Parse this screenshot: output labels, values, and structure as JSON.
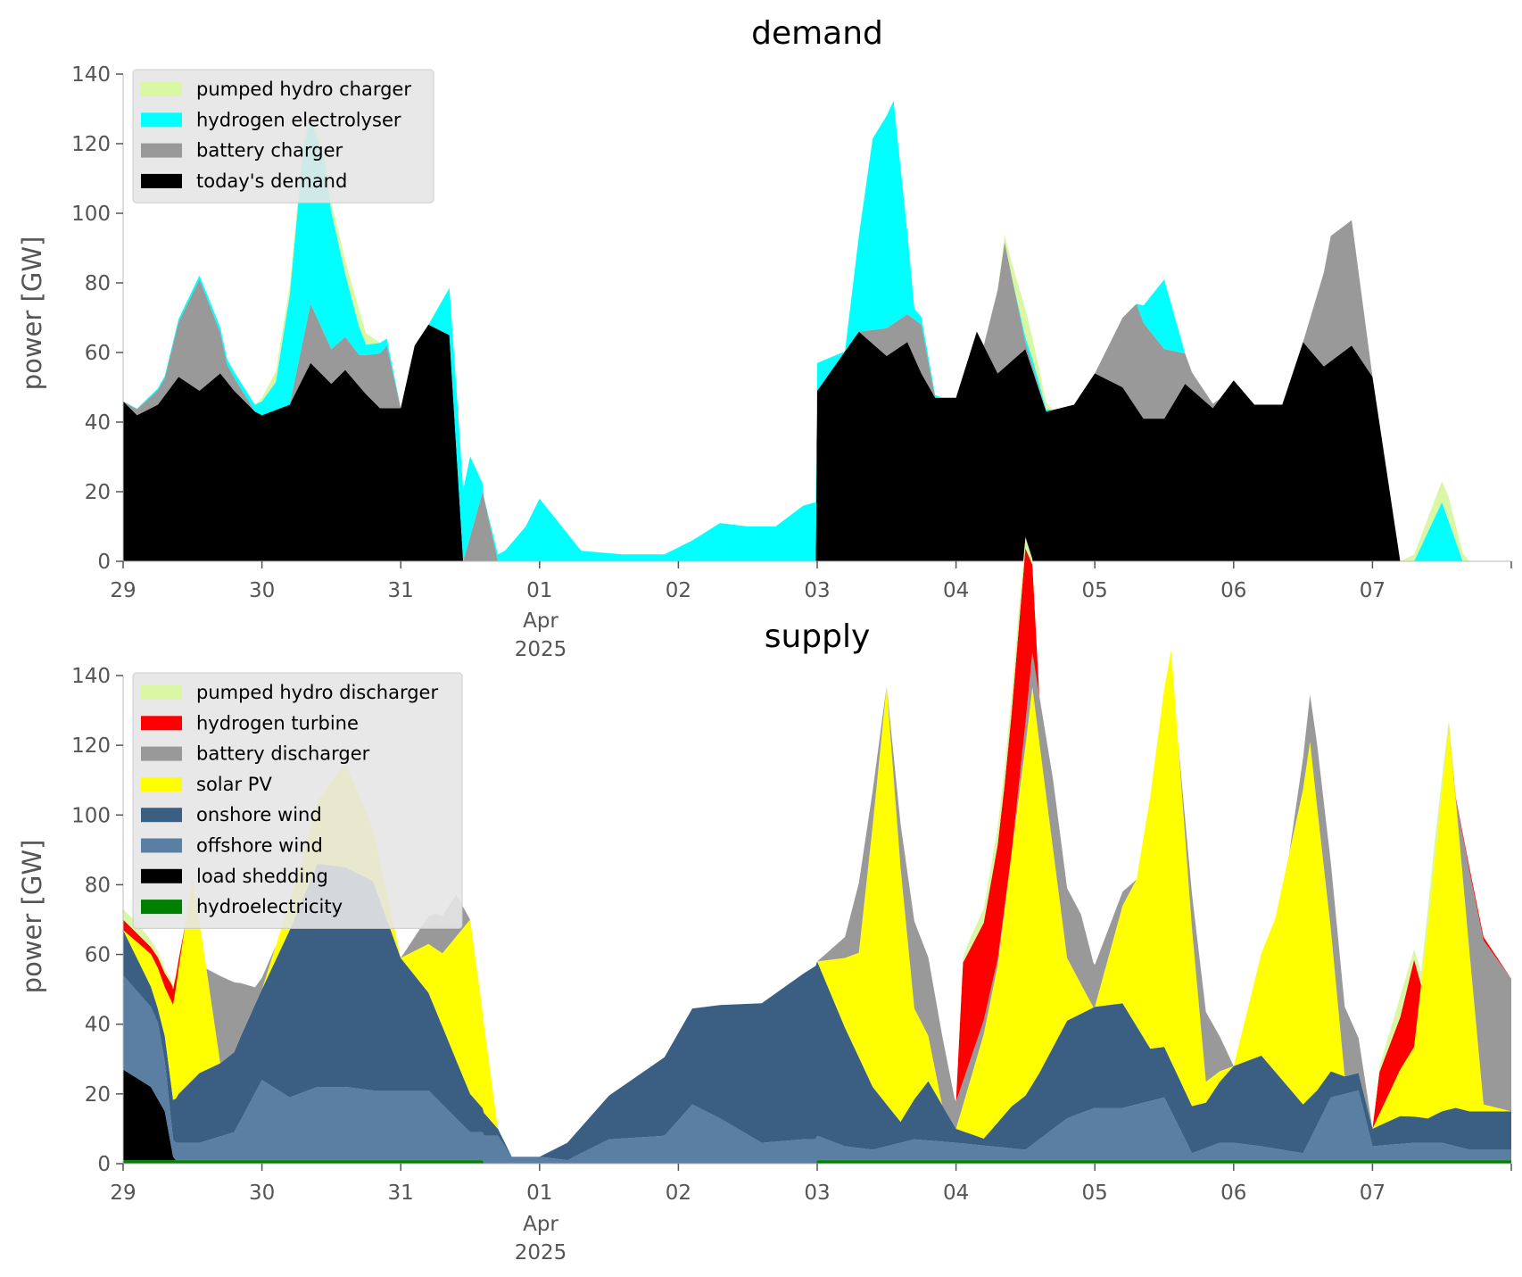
{
  "chart_data": [
    {
      "type": "area",
      "stacked": true,
      "title": "demand",
      "ylabel": "power [GW]",
      "ylim": [
        0,
        140
      ],
      "yticks": [
        "0",
        "20",
        "40",
        "60",
        "80",
        "100",
        "120",
        "140"
      ],
      "xlim": [
        "2025-03-29T00:00",
        "2025-04-08T00:00"
      ],
      "xticks": [
        "29",
        "30",
        "31",
        "01",
        "02",
        "03",
        "04",
        "05",
        "06",
        "07"
      ],
      "xtick_month": "Apr",
      "xtick_year": "2025",
      "grid": false,
      "legend_position": "top-left",
      "legend": [
        "pumped hydro charger",
        "hydrogen electrolyser",
        "battery charger",
        "today's demand"
      ],
      "series": [
        {
          "name": "today's demand",
          "color": "#000000",
          "x": [
            0,
            0.1,
            0.25,
            0.4,
            0.55,
            0.7,
            0.8,
            0.95,
            1.0,
            1.2,
            1.35,
            1.5,
            1.6,
            1.75,
            1.85,
            2.0,
            2.1,
            2.2,
            2.35,
            2.45,
            2.55,
            2.59,
            2.6,
            3.0,
            3.3,
            3.6,
            3.9,
            4.99,
            5.0,
            5.3,
            5.5,
            5.65,
            5.75,
            5.85,
            6.0,
            6.15,
            6.3,
            6.5,
            6.65,
            6.85,
            7.0,
            7.2,
            7.35,
            7.5,
            7.65,
            7.85,
            8.0,
            8.15,
            8.35,
            8.5,
            8.65,
            8.85,
            9.0,
            9.2,
            9.35,
            9.5,
            9.7,
            9.85,
            10.0
          ],
          "values": [
            46,
            42,
            45,
            53,
            49,
            54,
            49,
            43,
            42,
            45,
            57,
            51,
            55,
            48,
            44,
            44,
            62,
            68,
            65,
            0,
            0,
            0,
            0,
            0,
            0,
            0,
            0,
            0,
            49,
            66,
            59,
            63,
            54,
            47,
            47,
            66,
            54,
            61,
            43,
            45,
            54,
            50,
            41,
            41,
            51,
            44,
            52,
            45,
            45,
            63,
            56,
            62,
            53,
            0,
            0,
            0,
            0,
            0,
            0
          ]
        },
        {
          "name": "battery charger",
          "color": "#999999",
          "x": [
            0,
            0.3,
            0.55,
            0.75,
            0.95,
            1.2,
            1.35,
            1.5,
            1.7,
            1.9,
            2.0,
            2.2,
            2.45,
            2.59,
            2.7,
            2.8,
            3.0,
            5.0,
            5.3,
            5.5,
            5.65,
            5.75,
            5.85,
            6.0,
            6.2,
            6.35,
            6.5,
            6.65,
            6.85,
            7.0,
            7.3,
            7.5,
            7.7,
            7.9,
            8.0,
            8.2,
            8.5,
            8.7,
            8.85,
            9.0,
            9.2,
            9.35,
            9.5,
            9.7,
            9.85,
            10.0
          ],
          "values": [
            0,
            5,
            32,
            5,
            0,
            0,
            17,
            10,
            9,
            18,
            0,
            0,
            0,
            20,
            0,
            0,
            0,
            0,
            0,
            8,
            8,
            14,
            0,
            0,
            0,
            36,
            2,
            0,
            0,
            0,
            30,
            20,
            5,
            0,
            0,
            0,
            0,
            36,
            36,
            0,
            0,
            0,
            0,
            0,
            0,
            0
          ]
        },
        {
          "name": "hydrogen electrolyser",
          "color": "#00ffff",
          "x": [
            0,
            0.95,
            1.1,
            1.3,
            1.45,
            1.6,
            1.75,
            1.85,
            2.0,
            2.2,
            2.4,
            2.5,
            2.6,
            2.75,
            2.9,
            3.0,
            3.3,
            3.6,
            3.9,
            4.1,
            4.3,
            4.5,
            4.7,
            4.9,
            4.99,
            5.0,
            5.2,
            5.4,
            5.55,
            5.7,
            5.9,
            6.2,
            6.4,
            6.55,
            6.7,
            6.85,
            7.0,
            7.3,
            7.5,
            7.65,
            7.8,
            7.95,
            8.2,
            8.35,
            8.5,
            8.65,
            8.85,
            9.0,
            9.3,
            9.5,
            9.65,
            9.85,
            10.0
          ],
          "values": [
            0,
            2,
            8,
            55,
            50,
            18,
            3,
            3,
            0,
            0,
            18,
            23,
            0,
            3,
            10,
            18,
            3,
            2,
            2,
            6,
            11,
            10,
            10,
            16,
            17,
            8,
            0,
            55,
            64,
            3,
            0,
            0,
            0,
            2,
            0,
            0,
            0,
            0,
            20,
            0,
            0,
            0,
            0,
            0,
            0,
            0,
            0,
            0,
            0,
            17,
            0,
            0,
            0
          ]
        },
        {
          "name": "pumped hydro charger",
          "color": "#d9f7a4",
          "x": [
            0,
            0.95,
            1.1,
            1.3,
            1.5,
            1.7,
            1.85,
            2.0,
            6.3,
            6.5,
            6.7,
            6.9,
            9.2,
            9.4,
            9.55,
            9.7,
            10.0
          ],
          "values": [
            0,
            0,
            3,
            2,
            3,
            5,
            0,
            0,
            0,
            8,
            0,
            0,
            0,
            4,
            7,
            0,
            0
          ]
        }
      ]
    },
    {
      "type": "area",
      "stacked": true,
      "title": "supply",
      "ylabel": "power [GW]",
      "ylim": [
        0,
        140
      ],
      "yticks": [
        "0",
        "20",
        "40",
        "60",
        "80",
        "100",
        "120",
        "140"
      ],
      "xlim": [
        "2025-03-29T00:00",
        "2025-04-08T00:00"
      ],
      "xticks": [
        "29",
        "30",
        "31",
        "01",
        "02",
        "03",
        "04",
        "05",
        "06",
        "07"
      ],
      "xtick_month": "Apr",
      "xtick_year": "2025",
      "grid": false,
      "legend_position": "top-left",
      "legend": [
        "pumped hydro discharger",
        "hydrogen turbine",
        "battery discharger",
        "solar PV",
        "onshore wind",
        "offshore wind",
        "load shedding",
        "hydroelectricity"
      ],
      "series": [
        {
          "name": "hydroelectricity",
          "color": "#008000",
          "x": [
            0,
            2.59,
            2.6,
            4.99,
            5.0,
            10.0
          ],
          "values": [
            1,
            1,
            0,
            0,
            1,
            1
          ]
        },
        {
          "name": "load shedding",
          "color": "#000000",
          "x": [
            0,
            0.2,
            0.3,
            0.36,
            0.38,
            10.0
          ],
          "values": [
            26,
            21,
            14,
            1,
            0,
            0
          ]
        },
        {
          "name": "offshore wind",
          "color": "#5b7fa3",
          "x": [
            0,
            0.25,
            0.36,
            0.55,
            0.8,
            1.0,
            1.2,
            1.4,
            1.6,
            1.8,
            2.0,
            2.2,
            2.5,
            2.7,
            2.8,
            3.0,
            3.2,
            3.5,
            3.9,
            4.1,
            4.3,
            4.6,
            4.9,
            5.0,
            5.2,
            5.4,
            5.7,
            6.0,
            6.5,
            6.8,
            7.0,
            7.2,
            7.5,
            7.7,
            7.9,
            8.0,
            8.2,
            8.5,
            8.7,
            8.9,
            9.0,
            9.3,
            9.5,
            9.7,
            10.0
          ],
          "values": [
            27,
            22,
            5,
            5,
            8,
            23,
            18,
            21,
            21,
            20,
            20,
            20,
            8,
            8,
            2,
            2,
            1,
            7,
            8,
            17,
            13,
            6,
            7,
            7,
            4,
            3,
            6,
            5,
            3,
            12,
            15,
            15,
            18,
            2,
            5,
            5,
            4,
            2,
            18,
            20,
            4,
            5,
            5,
            3,
            3
          ]
        },
        {
          "name": "onshore wind",
          "color": "#3a5f82",
          "x": [
            0,
            0.25,
            0.4,
            0.55,
            0.7,
            0.85,
            1.0,
            1.2,
            1.4,
            1.6,
            1.8,
            2.0,
            2.2,
            2.5,
            2.7,
            2.8,
            3.0,
            5.0,
            5.2,
            5.4,
            5.6,
            5.8,
            6.0,
            6.2,
            6.4,
            6.6,
            6.8,
            7.0,
            7.2,
            7.4,
            7.6,
            7.8,
            8.0,
            8.2,
            8.4,
            8.6,
            8.8,
            9.0,
            9.2,
            9.4,
            9.6,
            9.8,
            10.0
          ],
          "values": [
            13,
            4,
            14,
            20,
            21,
            24,
            26,
            48,
            64,
            63,
            60,
            38,
            28,
            11,
            2,
            0,
            0,
            50,
            34,
            18,
            6,
            17,
            4,
            2,
            12,
            19,
            28,
            29,
            30,
            15,
            14,
            13,
            22,
            26,
            18,
            10,
            5,
            5,
            8,
            7,
            11,
            11,
            11
          ]
        },
        {
          "name": "solar PV",
          "color": "#ffff00",
          "x": [
            0,
            0.3,
            0.5,
            0.7,
            1.0,
            1.3,
            1.6,
            2.0,
            2.3,
            2.5,
            2.7,
            3.0,
            5.0,
            5.3,
            5.5,
            5.7,
            5.9,
            6.0,
            6.3,
            6.55,
            6.8,
            6.99,
            7.0,
            7.3,
            7.55,
            7.8,
            8.0,
            8.3,
            8.55,
            8.8,
            9.0,
            9.3,
            9.55,
            9.8,
            10.0
          ],
          "values": [
            0,
            14,
            58,
            0,
            0,
            12,
            30,
            0,
            21,
            50,
            0,
            0,
            0,
            30,
            120,
            26,
            0,
            0,
            45,
            114,
            18,
            0,
            0,
            42,
            118,
            6,
            0,
            44,
            102,
            0,
            0,
            20,
            110,
            2,
            0
          ]
        },
        {
          "name": "battery discharger",
          "color": "#999999",
          "x": [
            0,
            0.6,
            0.7,
            0.8,
            0.95,
            1.1,
            2.0,
            2.25,
            2.4,
            2.5,
            3.0,
            5.0,
            5.2,
            5.3,
            5.5,
            5.7,
            5.9,
            5.99,
            6.4,
            6.7,
            6.9,
            7.0,
            7.3,
            7.6,
            7.8,
            8.0,
            8.2,
            8.4,
            8.6,
            8.8,
            9.0,
            9.2,
            9.4,
            9.6,
            9.8,
            10.0
          ],
          "values": [
            0,
            0,
            25,
            20,
            5,
            0,
            0,
            10,
            12,
            0,
            0,
            0,
            6,
            20,
            0,
            25,
            20,
            8,
            0,
            20,
            20,
            12,
            0,
            0,
            20,
            0,
            0,
            0,
            18,
            20,
            0,
            0,
            0,
            0,
            47,
            38
          ]
        },
        {
          "name": "hydrogen turbine",
          "color": "#ff0000",
          "x": [
            0,
            0.2,
            0.35,
            0.45,
            0.55,
            6.0,
            6.05,
            6.2,
            6.35,
            6.5,
            6.6,
            9.0,
            9.05,
            9.2,
            9.3,
            9.35,
            9.5,
            9.7,
            9.8,
            10.0
          ],
          "values": [
            3,
            2,
            5,
            0,
            0,
            0,
            34,
            28,
            35,
            50,
            0,
            0,
            12,
            15,
            25,
            0,
            0,
            1,
            1,
            0
          ]
        },
        {
          "name": "pumped hydro discharger",
          "color": "#d9f7a4",
          "x": [
            0,
            0.1,
            0.2,
            0.35,
            0.45,
            6.0,
            6.1,
            6.3,
            6.45,
            6.6,
            9.0,
            9.2,
            9.3,
            9.45,
            9.6,
            10.0
          ],
          "values": [
            3,
            3,
            2,
            1,
            0,
            0,
            3,
            5,
            5,
            0,
            0,
            6,
            3,
            5,
            0,
            0
          ]
        }
      ]
    }
  ]
}
